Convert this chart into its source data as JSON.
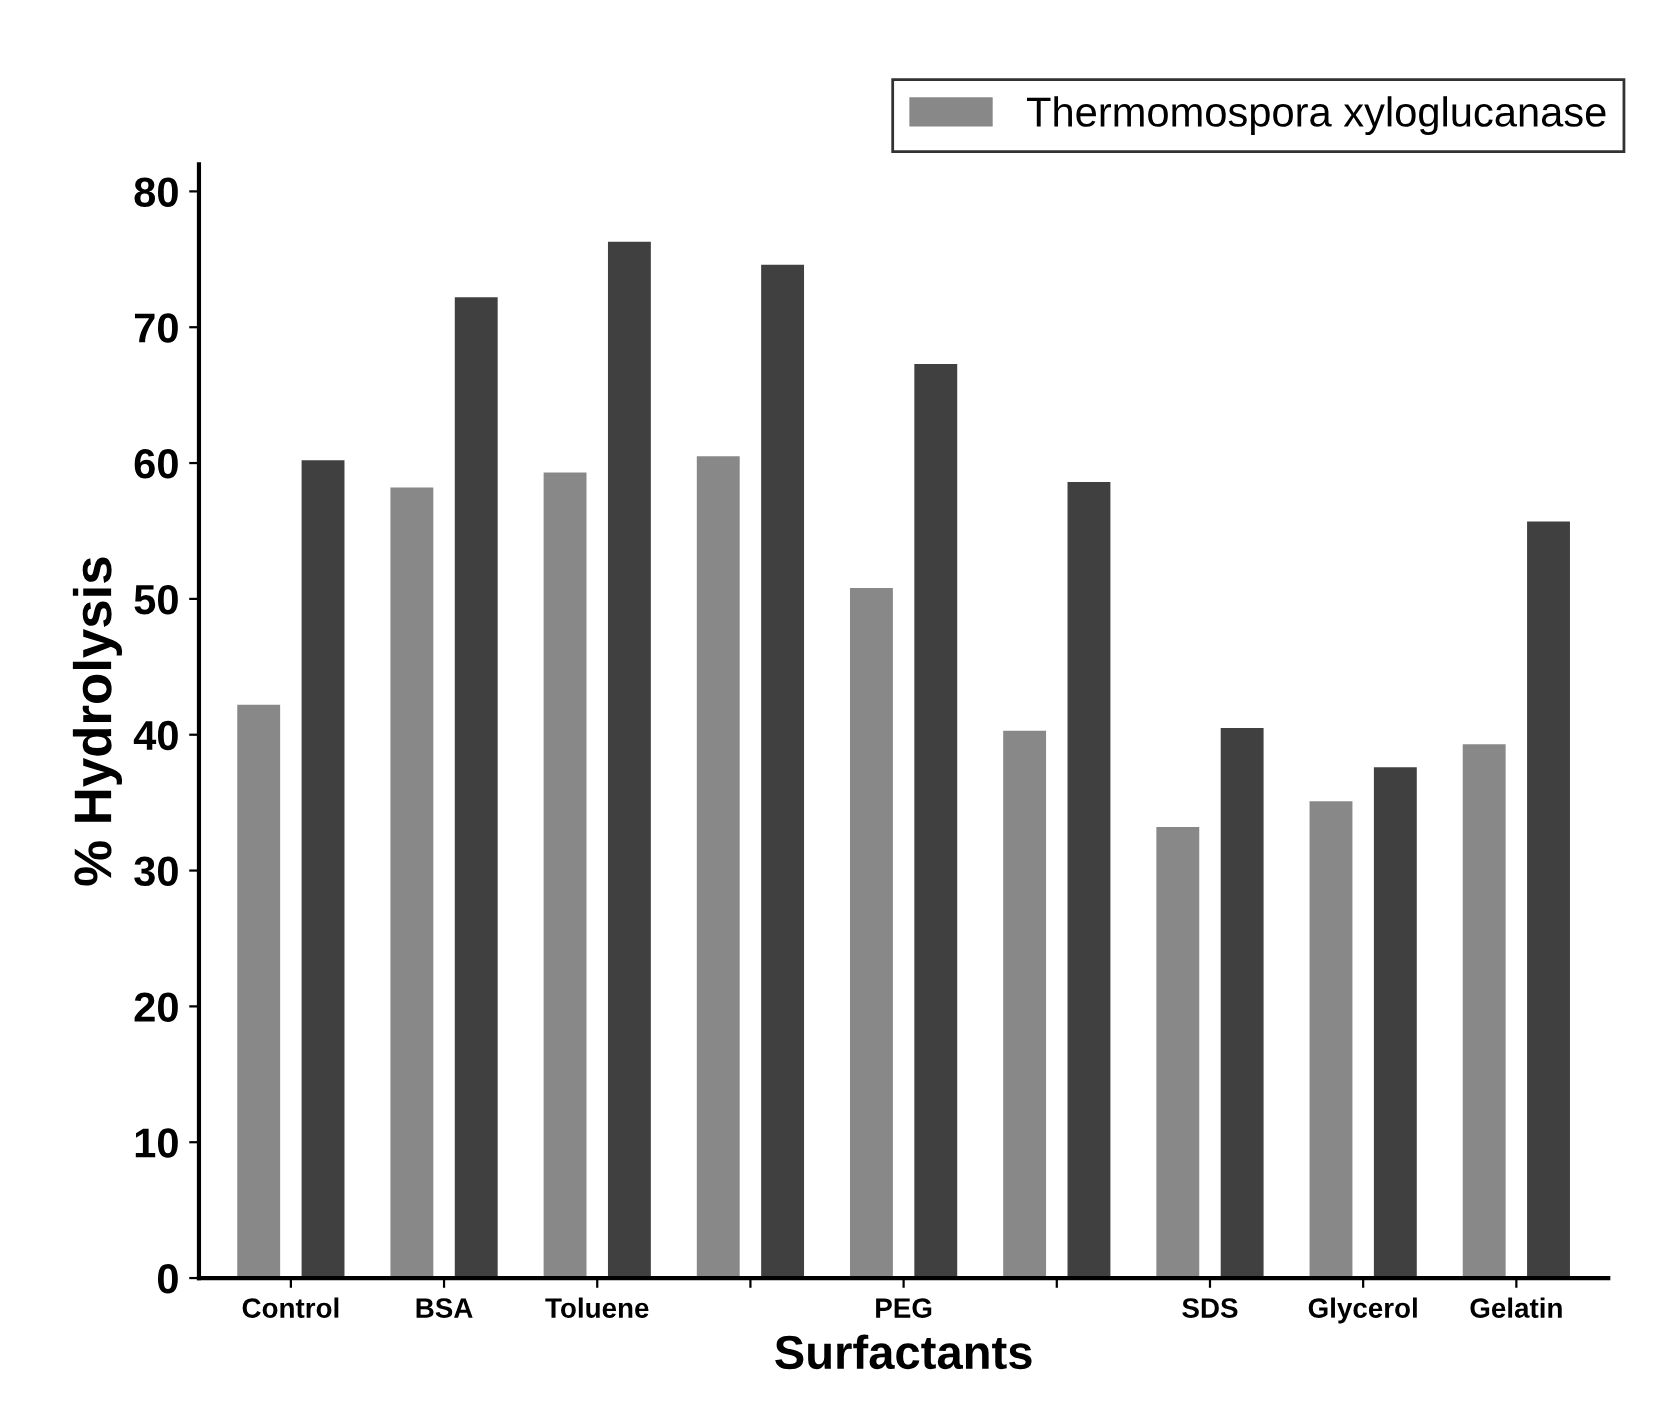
{
  "chart_data": {
    "type": "bar",
    "xlabel": "Surfactants",
    "ylabel": "% Hydrolysis",
    "categories": [
      "Control",
      "BSA",
      "Toluene",
      null,
      "PEG",
      null,
      "SDS",
      "Glycerol",
      "Gelatin"
    ],
    "series": [
      {
        "name": "Thermomospora xyloglucanase",
        "color": "#888888",
        "values": [
          42.2,
          58.2,
          59.3,
          60.5,
          50.8,
          40.3,
          33.2,
          35.1,
          39.3
        ]
      },
      {
        "color": "#404040",
        "values": [
          60.2,
          72.2,
          76.3,
          74.6,
          67.3,
          58.6,
          40.5,
          37.6,
          55.7
        ]
      }
    ],
    "ylim": [
      0,
      82
    ],
    "yticks": [
      0,
      10,
      20,
      30,
      40,
      50,
      60,
      70,
      80
    ],
    "grid": false,
    "legend": "top right"
  }
}
